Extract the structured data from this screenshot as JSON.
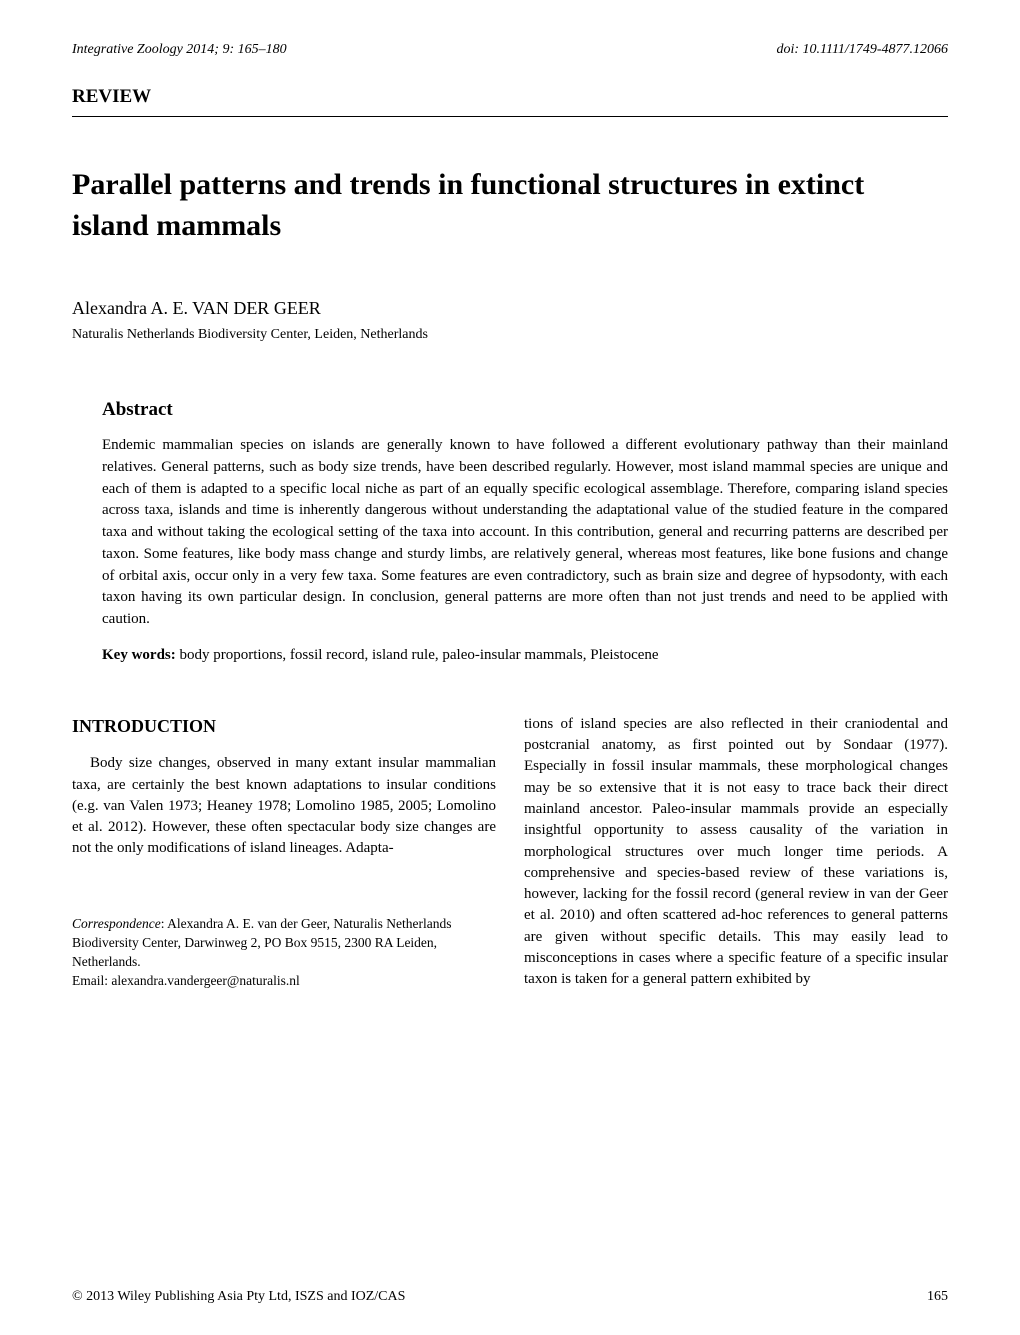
{
  "header": {
    "journal": "Integrative Zoology 2014; 9: 165–180",
    "doi": "doi: 10.1111/1749-4877.12066"
  },
  "section_label": "REVIEW",
  "title": "Parallel patterns and trends in functional structures in extinct island mammals",
  "author": "Alexandra A. E. VAN DER GEER",
  "affiliation": "Naturalis Netherlands Biodiversity Center, Leiden, Netherlands",
  "abstract": {
    "heading": "Abstract",
    "text": "Endemic mammalian species on islands are generally known to have followed a different evolutionary pathway than their mainland relatives. General patterns, such as body size trends, have been described regularly. However, most island mammal species are unique and each of them is adapted to a specific local niche as part of an equally specific ecological assemblage. Therefore, comparing island species across taxa, islands and time is inherently dangerous without understanding the adaptational value of the studied feature in the compared taxa and without taking the ecological setting of the taxa into account. In this contribution, general and recurring patterns are described per taxon. Some features, like body mass change and sturdy limbs, are relatively general, whereas most features, like bone fusions and change of orbital axis, occur only in a very few taxa. Some features are even contradictory, such as brain size and degree of hypsodonty, with each taxon having its own particular design. In conclusion, general patterns are more often than not just trends and need to be applied with caution.",
    "keywords_label": "Key words:",
    "keywords": " body proportions, fossil record, island rule, paleo-insular mammals, Pleistocene"
  },
  "intro": {
    "heading": "INTRODUCTION",
    "col_left": "Body size changes, observed in many extant insular mammalian taxa, are certainly the best known adaptations to insular conditions (e.g. van Valen 1973; Heaney 1978; Lomolino 1985, 2005; Lomolino et al. 2012). However, these often spectacular body size changes are not the only modifications of island lineages. Adapta-",
    "col_right": "tions of island species are also reflected in their craniodental and postcranial anatomy, as first pointed out by Sondaar (1977). Especially in fossil insular mammals, these morphological changes may be so extensive that it is not easy to trace back their direct mainland ancestor. Paleo-insular mammals provide an especially insightful opportunity to assess causality of the variation in morphological structures over much longer time periods. A comprehensive and species-based review of these variations is, however, lacking for the fossil record (general review in van der Geer et al. 2010) and often scattered ad-hoc references to general patterns are given without specific details. This may easily lead to misconceptions in cases where a specific feature of a specific insular taxon is taken for a general pattern exhibited by"
  },
  "correspondence": {
    "label": "Correspondence",
    "text": ": Alexandra A. E. van der Geer, Naturalis Netherlands Biodiversity Center, Darwinweg 2, PO Box 9515, 2300 RA Leiden, Netherlands.",
    "email": "Email: alexandra.vandergeer@naturalis.nl"
  },
  "footer": {
    "copyright": "© 2013 Wiley Publishing Asia Pty Ltd, ISZS and IOZ/CAS",
    "page": "165"
  }
}
